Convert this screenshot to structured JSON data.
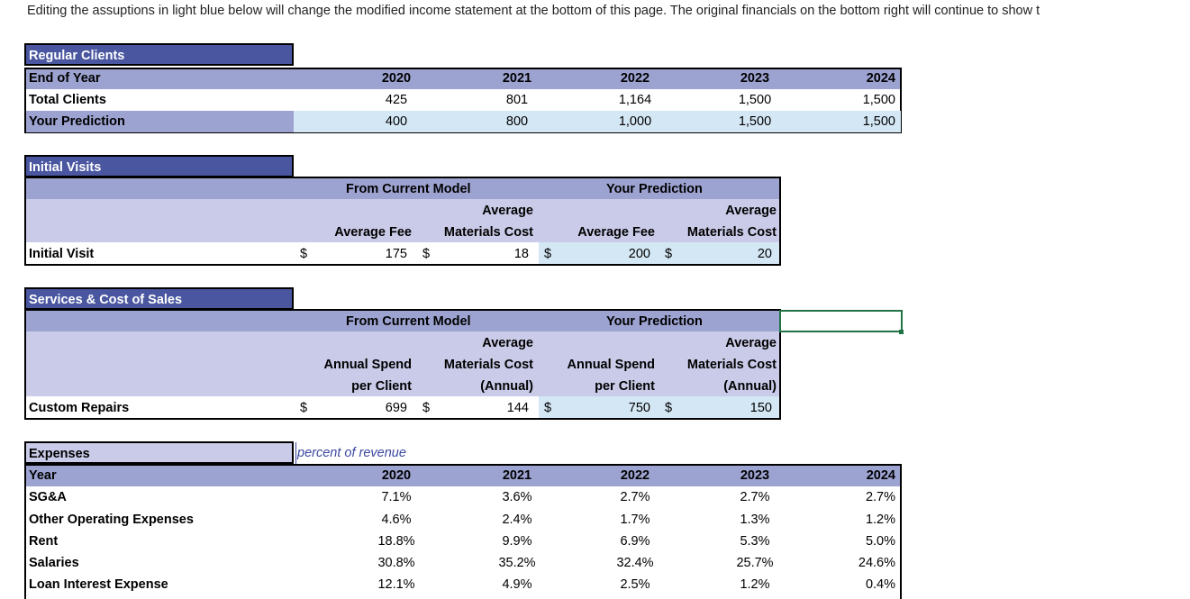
{
  "note": "Editing the assuptions in light blue below will change the modified income statement at the bottom of this page. The original financials on the bottom right will continue to show t",
  "regular_clients": {
    "title": "Regular Clients",
    "year_label": "End of Year",
    "years": [
      "2020",
      "2021",
      "2022",
      "2023",
      "2024"
    ],
    "total_label": "Total Clients",
    "totals": [
      "425",
      "801",
      "1,164",
      "1,500",
      "1,500"
    ],
    "pred_label": "Your Prediction",
    "preds": [
      "400",
      "800",
      "1,000",
      "1,500",
      "1,500"
    ]
  },
  "initial_visits": {
    "title": "Initial Visits",
    "current_model": "From Current Model",
    "your_prediction": "Your Prediction",
    "avg_line1": "Average",
    "avg_fee": "Average Fee",
    "mat_cost": "Materials Cost",
    "row_label": "Initial Visit",
    "dollar": "$",
    "fee": "175",
    "cost": "18",
    "pred_fee": "200",
    "pred_cost": "20"
  },
  "services": {
    "title": "Services & Cost of Sales",
    "current_model": "From Current Model",
    "your_prediction": "Your Prediction",
    "avg_line1": "Average",
    "annual_spend": "Annual Spend",
    "per_client": "per Client",
    "mat_cost": "Materials Cost",
    "annual": "(Annual)",
    "row_label": "Custom Repairs",
    "dollar": "$",
    "spend": "699",
    "cost": "144",
    "pred_spend": "750",
    "pred_cost": "150"
  },
  "expenses": {
    "title": "Expenses",
    "percent_note": "percent of revenue",
    "year_label": "Year",
    "years": [
      "2020",
      "2021",
      "2022",
      "2023",
      "2024"
    ],
    "rows": [
      {
        "label": "SG&A",
        "vals": [
          "7.1%",
          "3.6%",
          "2.7%",
          "2.7%",
          "2.7%"
        ]
      },
      {
        "label": "Other Operating Expenses",
        "vals": [
          "4.6%",
          "2.4%",
          "1.7%",
          "1.3%",
          "1.2%"
        ]
      },
      {
        "label": "Rent",
        "vals": [
          "18.8%",
          "9.9%",
          "6.9%",
          "5.3%",
          "5.0%"
        ]
      },
      {
        "label": "Salaries",
        "vals": [
          "30.8%",
          "35.2%",
          "32.4%",
          "25.7%",
          "24.6%"
        ]
      },
      {
        "label": "Loan Interest Expense",
        "vals": [
          "12.1%",
          "4.9%",
          "2.5%",
          "1.2%",
          "0.4%"
        ]
      }
    ]
  }
}
